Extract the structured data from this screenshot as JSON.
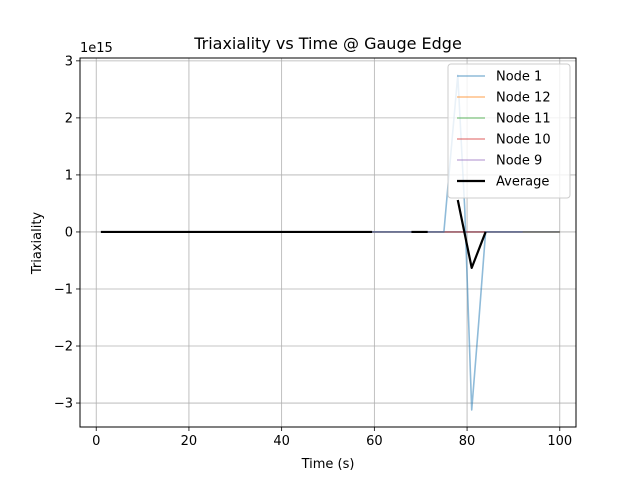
{
  "chart_data": {
    "type": "line",
    "title": "Triaxiality vs Time @ Gauge Edge",
    "xlabel": "Time (s)",
    "ylabel": "Triaxiality",
    "y_offset_label": "1e15",
    "xlim": [
      -3.5,
      103.5
    ],
    "ylim": [
      -3.42,
      3.05
    ],
    "x_ticks": [
      0,
      20,
      40,
      60,
      80,
      100
    ],
    "y_ticks": [
      -3,
      -2,
      -1,
      0,
      1,
      2,
      3
    ],
    "grid": true,
    "legend": "top-right",
    "series": [
      {
        "name": "Node 1",
        "color": "#1f77b4",
        "x": [
          59.5,
          61,
          64,
          67,
          70,
          72,
          75,
          78,
          79.5,
          81,
          82.5,
          84,
          87,
          90,
          93,
          96,
          100
        ],
        "y": [
          0,
          0,
          0,
          0,
          0,
          0,
          0,
          2.75,
          0.4,
          -3.12,
          -1.6,
          0,
          0,
          0,
          0,
          0,
          0
        ]
      },
      {
        "name": "Node 12",
        "color": "#ff7f0e",
        "x": [
          59.5,
          62,
          65,
          68,
          71,
          74,
          77,
          80,
          83,
          86,
          89,
          92,
          95,
          98,
          100
        ],
        "y": [
          0,
          0,
          0,
          0,
          0,
          0,
          0,
          0,
          0,
          0,
          0,
          0,
          0,
          0,
          0
        ]
      },
      {
        "name": "Node 11",
        "color": "#2ca02c",
        "x": [
          59.5,
          62,
          65,
          68,
          71,
          74,
          77,
          80,
          83,
          86,
          89,
          92,
          95,
          98,
          100
        ],
        "y": [
          0,
          0,
          0,
          0,
          0,
          0,
          0,
          0,
          0,
          0,
          0,
          0,
          0,
          0,
          0
        ]
      },
      {
        "name": "Node 10",
        "color": "#d62728",
        "x": [
          59.5,
          62,
          65,
          68,
          71,
          74,
          77,
          80,
          83,
          86,
          89,
          92,
          95,
          98,
          100
        ],
        "y": [
          0,
          0,
          0,
          0,
          0,
          0,
          0,
          0,
          0,
          0,
          0,
          0,
          0,
          0,
          0
        ]
      },
      {
        "name": "Node 9",
        "color": "#9467bd",
        "x": [
          59.5,
          62,
          65,
          68,
          71,
          74,
          77,
          80,
          83,
          86,
          89,
          92
        ],
        "y": [
          0,
          0,
          0,
          0,
          0,
          0,
          0,
          0,
          0,
          0,
          0,
          0
        ]
      },
      {
        "name": "Average",
        "color": "#000000",
        "segments": [
          {
            "x": [
              1,
              59.5
            ],
            "y": [
              0,
              0
            ]
          },
          {
            "x": [
              68,
              71.5
            ],
            "y": [
              0,
              0
            ]
          },
          {
            "x": [
              78,
              81,
              84
            ],
            "y": [
              0.56,
              -0.63,
              0
            ]
          }
        ]
      }
    ]
  }
}
